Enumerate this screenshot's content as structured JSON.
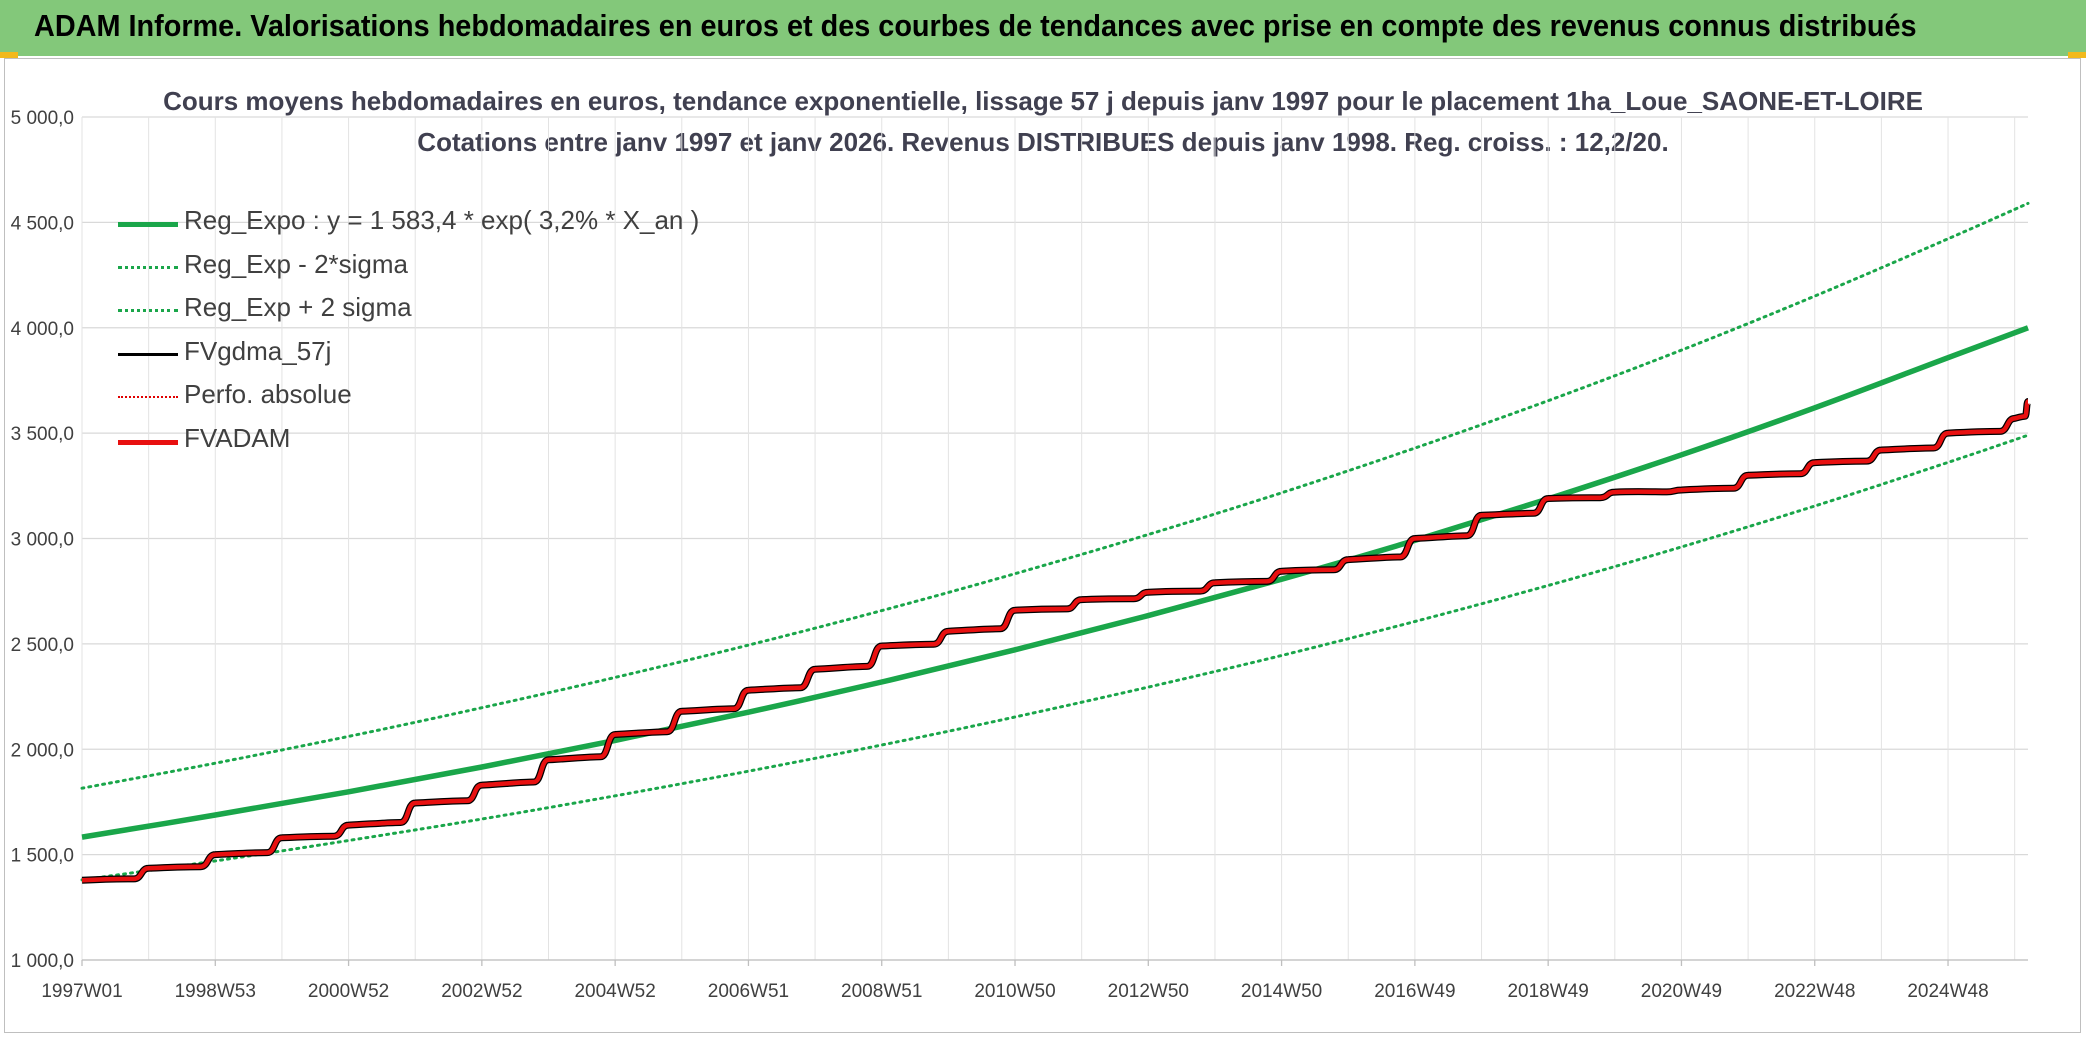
{
  "banner": {
    "title": "ADAM Informe. Valorisations hebdomadaires en euros et des courbes de tendances avec prise en compte des revenus connus distribués",
    "color": "#83c87a"
  },
  "chart_data": {
    "type": "line",
    "title_line1": "Cours moyens hebdomadaires en euros, tendance exponentielle, lissage 57 j depuis janv 1997 pour le placement 1ha_Loue_SAONE-ET-LOIRE",
    "title_line2": "Cotations entre janv 1997 et janv 2026. Revenus DISTRIBUES depuis janv 1998. Reg. croiss. : 12,2/20.",
    "grid": true,
    "legend_position": "top-left",
    "ylim": [
      1000,
      5000
    ],
    "y_ticks": [
      "1 000,0",
      "1 500,0",
      "2 000,0",
      "2 500,0",
      "3 000,0",
      "3 500,0",
      "4 000,0",
      "4 500,0",
      "5 000,0"
    ],
    "y_tick_values": [
      1000,
      1500,
      2000,
      2500,
      3000,
      3500,
      4000,
      4500,
      5000
    ],
    "x_range": [
      1997.0,
      2026.2
    ],
    "x_ticks": [
      "1997W01",
      "1998W53",
      "2000W52",
      "2002W52",
      "2004W52",
      "2006W51",
      "2008W51",
      "2010W50",
      "2012W50",
      "2014W50",
      "2016W49",
      "2018W49",
      "2020W49",
      "2022W48",
      "2024W48"
    ],
    "x_tick_values": [
      1997.0,
      1999.0,
      2001.0,
      2003.0,
      2005.0,
      2007.0,
      2009.0,
      2011.0,
      2013.0,
      2015.0,
      2017.0,
      2019.0,
      2021.0,
      2023.0,
      2025.0
    ],
    "series": [
      {
        "name": "Reg_Expo : y = 1 583,4 * exp( 3,2% *  X_an )",
        "color": "#1aa64a",
        "style": "solid-thick",
        "x": [
          1997.0,
          1999.0,
          2001.0,
          2003.0,
          2005.0,
          2007.0,
          2009.0,
          2011.0,
          2013.0,
          2015.0,
          2017.0,
          2019.0,
          2021.0,
          2023.0,
          2025.0,
          2026.2
        ],
        "values": [
          1583,
          1688,
          1798,
          1916,
          2042,
          2176,
          2319,
          2472,
          2634,
          2807,
          2991,
          3188,
          3397,
          3620,
          3858,
          4000
        ]
      },
      {
        "name": "Reg_Exp - 2*sigma",
        "color": "#1aa64a",
        "style": "dotted",
        "x": [
          1997.0,
          1999.0,
          2001.0,
          2003.0,
          2005.0,
          2007.0,
          2009.0,
          2011.0,
          2013.0,
          2015.0,
          2017.0,
          2019.0,
          2021.0,
          2023.0,
          2025.0,
          2026.2
        ],
        "values": [
          1380,
          1470,
          1567,
          1669,
          1779,
          1896,
          2020,
          2153,
          2295,
          2445,
          2606,
          2777,
          2960,
          3154,
          3361,
          3490
        ]
      },
      {
        "name": "Reg_Exp + 2 sigma",
        "color": "#1aa64a",
        "style": "dotted",
        "x": [
          1997.0,
          1999.0,
          2001.0,
          2003.0,
          2005.0,
          2007.0,
          2009.0,
          2011.0,
          2013.0,
          2015.0,
          2017.0,
          2019.0,
          2021.0,
          2023.0,
          2025.0,
          2026.2
        ],
        "values": [
          1815,
          1934,
          2061,
          2197,
          2341,
          2494,
          2658,
          2833,
          3019,
          3217,
          3429,
          3654,
          3894,
          4150,
          4422,
          4590
        ]
      },
      {
        "name": "FVgdma_57j",
        "color": "#000000",
        "style": "solid",
        "x": [
          1997.0,
          1998.0,
          1999.0,
          2000.0,
          2001.0,
          2002.0,
          2003.0,
          2004.0,
          2005.0,
          2006.0,
          2007.0,
          2008.0,
          2009.0,
          2010.0,
          2011.0,
          2012.0,
          2013.0,
          2014.0,
          2015.0,
          2016.0,
          2017.0,
          2018.0,
          2019.0,
          2020.0,
          2021.0,
          2022.0,
          2023.0,
          2024.0,
          2025.0,
          2026.0,
          2026.2
        ],
        "values": [
          1378,
          1435,
          1500,
          1580,
          1640,
          1745,
          1830,
          1950,
          2070,
          2180,
          2280,
          2380,
          2490,
          2560,
          2660,
          2710,
          2745,
          2790,
          2845,
          2900,
          3000,
          3110,
          3190,
          3220,
          3230,
          3300,
          3360,
          3420,
          3500,
          3570,
          3650
        ]
      },
      {
        "name": "Perfo. absolue",
        "color": "#e00000",
        "style": "dotted",
        "x": [],
        "values": []
      },
      {
        "name": "FVADAM",
        "color": "#e81010",
        "style": "solid-thick",
        "x": [
          1997.0,
          1998.0,
          1999.0,
          2000.0,
          2001.0,
          2002.0,
          2003.0,
          2004.0,
          2005.0,
          2006.0,
          2007.0,
          2008.0,
          2009.0,
          2010.0,
          2011.0,
          2012.0,
          2013.0,
          2014.0,
          2015.0,
          2016.0,
          2017.0,
          2018.0,
          2019.0,
          2020.0,
          2021.0,
          2022.0,
          2023.0,
          2024.0,
          2025.0,
          2026.0,
          2026.2
        ],
        "values": [
          1378,
          1435,
          1500,
          1580,
          1640,
          1745,
          1830,
          1950,
          2070,
          2180,
          2280,
          2380,
          2490,
          2560,
          2660,
          2710,
          2745,
          2790,
          2845,
          2900,
          3000,
          3110,
          3190,
          3220,
          3230,
          3300,
          3360,
          3420,
          3500,
          3570,
          3650
        ]
      }
    ]
  }
}
